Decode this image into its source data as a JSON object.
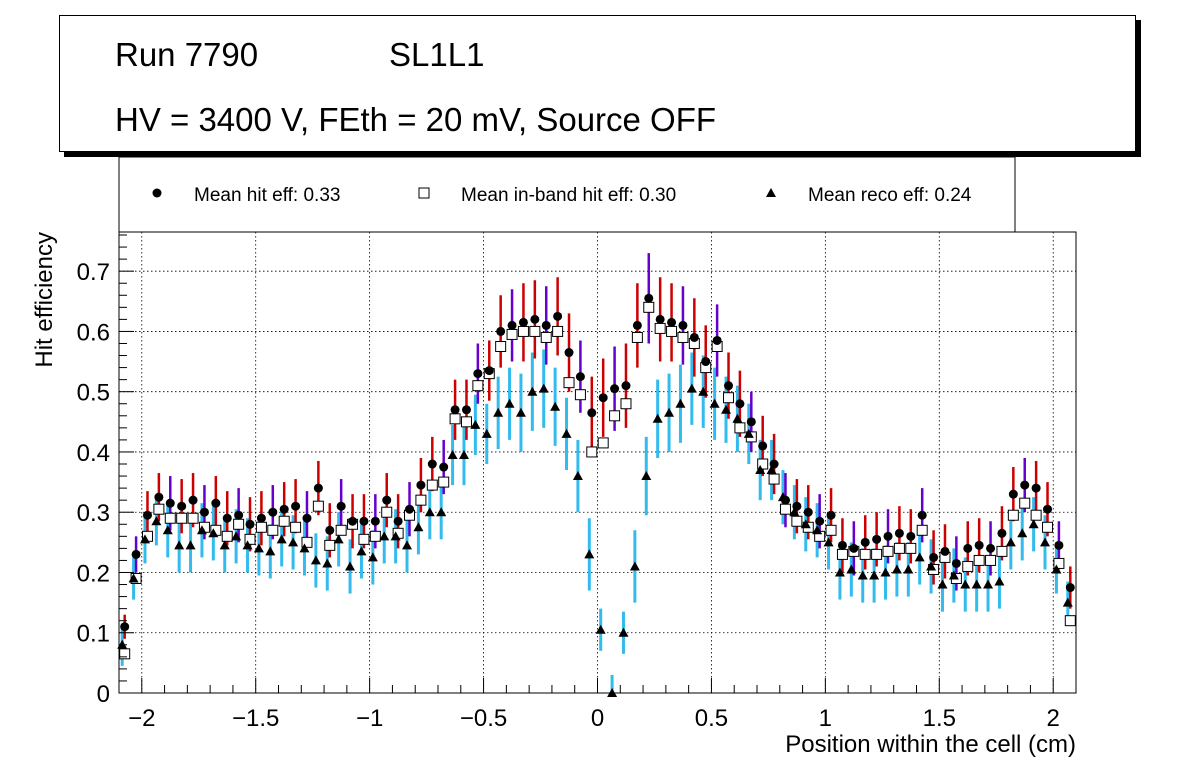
{
  "info": {
    "run": "Run 7790",
    "layer": "SL1L1",
    "conditions": "HV = 3400 V, FEth = 20 mV, Source OFF"
  },
  "chart_data": {
    "type": "scatter",
    "title": "",
    "xlabel": "Position within the cell (cm)",
    "ylabel": "Hit efficiency",
    "xlim": [
      -2.1,
      2.1
    ],
    "ylim": [
      0,
      0.765
    ],
    "grid": true,
    "x_ticks": [
      -2,
      -1.5,
      -1,
      -0.5,
      0,
      0.5,
      1,
      1.5,
      2
    ],
    "x_tick_labels": [
      "−2",
      "−1.5",
      "−1",
      "−0.5",
      "0",
      "0.5",
      "1",
      "1.5",
      "2"
    ],
    "y_ticks": [
      0,
      0.1,
      0.2,
      0.3,
      0.4,
      0.5,
      0.6,
      0.7
    ],
    "y_tick_labels": [
      "0",
      "0.1",
      "0.2",
      "0.3",
      "0.4",
      "0.5",
      "0.6",
      "0.7"
    ],
    "legend_position": "top",
    "colors": {
      "hit_err": "#cc0000",
      "hit_err_alt": "#6600cc",
      "inband_err": "#cc6666",
      "reco_err": "#33bbee"
    },
    "x": [
      -2.075,
      -2.025,
      -1.975,
      -1.925,
      -1.875,
      -1.825,
      -1.775,
      -1.725,
      -1.675,
      -1.625,
      -1.575,
      -1.525,
      -1.475,
      -1.425,
      -1.375,
      -1.325,
      -1.275,
      -1.225,
      -1.175,
      -1.125,
      -1.075,
      -1.025,
      -0.975,
      -0.925,
      -0.875,
      -0.825,
      -0.775,
      -0.725,
      -0.675,
      -0.625,
      -0.575,
      -0.525,
      -0.475,
      -0.425,
      -0.375,
      -0.325,
      -0.275,
      -0.225,
      -0.175,
      -0.125,
      -0.075,
      -0.025,
      0.025,
      0.075,
      0.125,
      0.175,
      0.225,
      0.275,
      0.325,
      0.375,
      0.425,
      0.475,
      0.525,
      0.575,
      0.625,
      0.675,
      0.725,
      0.775,
      0.825,
      0.875,
      0.925,
      0.975,
      1.025,
      1.075,
      1.125,
      1.175,
      1.225,
      1.275,
      1.325,
      1.375,
      1.425,
      1.475,
      1.525,
      1.575,
      1.625,
      1.675,
      1.725,
      1.775,
      1.825,
      1.875,
      1.925,
      1.975,
      2.025,
      2.075
    ],
    "series": [
      {
        "name": "Mean hit  eff: 0.33",
        "marker": "circle",
        "values": [
          0.11,
          0.23,
          0.295,
          0.325,
          0.315,
          0.31,
          0.32,
          0.3,
          0.315,
          0.29,
          0.295,
          0.28,
          0.29,
          0.3,
          0.305,
          0.31,
          0.29,
          0.34,
          0.27,
          0.31,
          0.285,
          0.285,
          0.285,
          0.32,
          0.285,
          0.305,
          0.345,
          0.38,
          0.375,
          0.47,
          0.47,
          0.53,
          0.535,
          0.6,
          0.61,
          0.615,
          0.62,
          0.61,
          0.625,
          0.565,
          0.525,
          0.465,
          0.49,
          0.505,
          0.51,
          0.61,
          0.655,
          0.62,
          0.615,
          0.61,
          0.59,
          0.55,
          0.585,
          0.51,
          0.48,
          0.45,
          0.41,
          0.38,
          0.32,
          0.31,
          0.3,
          0.285,
          0.295,
          0.245,
          0.24,
          0.25,
          0.255,
          0.26,
          0.265,
          0.26,
          0.295,
          0.225,
          0.235,
          0.215,
          0.24,
          0.245,
          0.24,
          0.265,
          0.33,
          0.345,
          0.34,
          0.305,
          0.245,
          0.175
        ],
        "err": [
          0.02,
          0.03,
          0.04,
          0.04,
          0.045,
          0.045,
          0.045,
          0.045,
          0.045,
          0.045,
          0.045,
          0.045,
          0.045,
          0.045,
          0.045,
          0.045,
          0.045,
          0.045,
          0.045,
          0.045,
          0.045,
          0.045,
          0.045,
          0.045,
          0.045,
          0.045,
          0.045,
          0.045,
          0.045,
          0.05,
          0.05,
          0.05,
          0.05,
          0.06,
          0.06,
          0.065,
          0.065,
          0.065,
          0.065,
          0.065,
          0.06,
          0.06,
          0.065,
          0.07,
          0.07,
          0.07,
          0.075,
          0.07,
          0.065,
          0.065,
          0.065,
          0.06,
          0.06,
          0.055,
          0.055,
          0.05,
          0.05,
          0.05,
          0.045,
          0.045,
          0.045,
          0.045,
          0.045,
          0.045,
          0.045,
          0.045,
          0.045,
          0.045,
          0.045,
          0.045,
          0.045,
          0.045,
          0.045,
          0.045,
          0.045,
          0.045,
          0.045,
          0.045,
          0.045,
          0.045,
          0.045,
          0.045,
          0.04,
          0.035
        ]
      },
      {
        "name": "Mean in-band hit eff: 0.30",
        "marker": "open-square",
        "values": [
          0.065,
          0.19,
          0.26,
          0.305,
          0.29,
          0.29,
          0.29,
          0.275,
          0.27,
          0.26,
          0.28,
          0.255,
          0.275,
          0.27,
          0.285,
          0.275,
          0.25,
          0.31,
          0.245,
          0.27,
          0.28,
          0.255,
          0.26,
          0.3,
          0.265,
          0.295,
          0.32,
          0.345,
          0.35,
          0.455,
          0.45,
          0.51,
          0.53,
          0.575,
          0.595,
          0.6,
          0.6,
          0.59,
          0.6,
          0.515,
          0.495,
          0.4,
          0.415,
          0.46,
          0.48,
          0.59,
          0.64,
          0.605,
          0.6,
          0.59,
          0.58,
          0.54,
          0.575,
          0.49,
          0.44,
          0.425,
          0.38,
          0.355,
          0.305,
          0.285,
          0.275,
          0.26,
          0.27,
          0.23,
          0.235,
          0.23,
          0.23,
          0.235,
          0.24,
          0.24,
          0.27,
          0.205,
          0.225,
          0.19,
          0.21,
          0.22,
          0.22,
          0.235,
          0.295,
          0.315,
          0.295,
          0.275,
          0.215,
          0.12
        ],
        "err": []
      },
      {
        "name": "Mean reco eff: 0.24",
        "marker": "triangle",
        "values": [
          0.08,
          0.19,
          0.255,
          0.285,
          0.27,
          0.245,
          0.245,
          0.27,
          0.265,
          0.245,
          0.26,
          0.245,
          0.24,
          0.235,
          0.255,
          0.25,
          0.24,
          0.22,
          0.215,
          0.255,
          0.21,
          0.235,
          0.225,
          0.26,
          0.26,
          0.245,
          0.275,
          0.3,
          0.3,
          0.395,
          0.395,
          0.445,
          0.43,
          0.465,
          0.48,
          0.465,
          0.5,
          0.505,
          0.475,
          0.43,
          0.36,
          0.23,
          0.105,
          0.0,
          0.1,
          0.21,
          0.36,
          0.455,
          0.465,
          0.48,
          0.505,
          0.5,
          0.48,
          0.47,
          0.455,
          0.43,
          0.37,
          0.37,
          0.325,
          0.3,
          0.28,
          0.27,
          0.25,
          0.2,
          0.205,
          0.195,
          0.195,
          0.2,
          0.205,
          0.205,
          0.225,
          0.21,
          0.18,
          0.195,
          0.18,
          0.18,
          0.18,
          0.185,
          0.25,
          0.265,
          0.28,
          0.25,
          0.205,
          0.15
        ],
        "err": [
          0.035,
          0.035,
          0.04,
          0.04,
          0.045,
          0.045,
          0.045,
          0.045,
          0.045,
          0.045,
          0.045,
          0.045,
          0.045,
          0.045,
          0.045,
          0.045,
          0.045,
          0.045,
          0.045,
          0.045,
          0.045,
          0.045,
          0.045,
          0.045,
          0.045,
          0.045,
          0.045,
          0.045,
          0.045,
          0.05,
          0.05,
          0.05,
          0.05,
          0.06,
          0.06,
          0.065,
          0.065,
          0.065,
          0.065,
          0.06,
          0.06,
          0.06,
          0.035,
          0.03,
          0.035,
          0.06,
          0.065,
          0.065,
          0.065,
          0.065,
          0.06,
          0.06,
          0.06,
          0.055,
          0.055,
          0.05,
          0.05,
          0.05,
          0.045,
          0.045,
          0.045,
          0.045,
          0.045,
          0.045,
          0.045,
          0.045,
          0.045,
          0.045,
          0.045,
          0.045,
          0.045,
          0.045,
          0.045,
          0.045,
          0.045,
          0.045,
          0.045,
          0.045,
          0.045,
          0.045,
          0.045,
          0.045,
          0.04,
          0.035
        ]
      }
    ]
  }
}
